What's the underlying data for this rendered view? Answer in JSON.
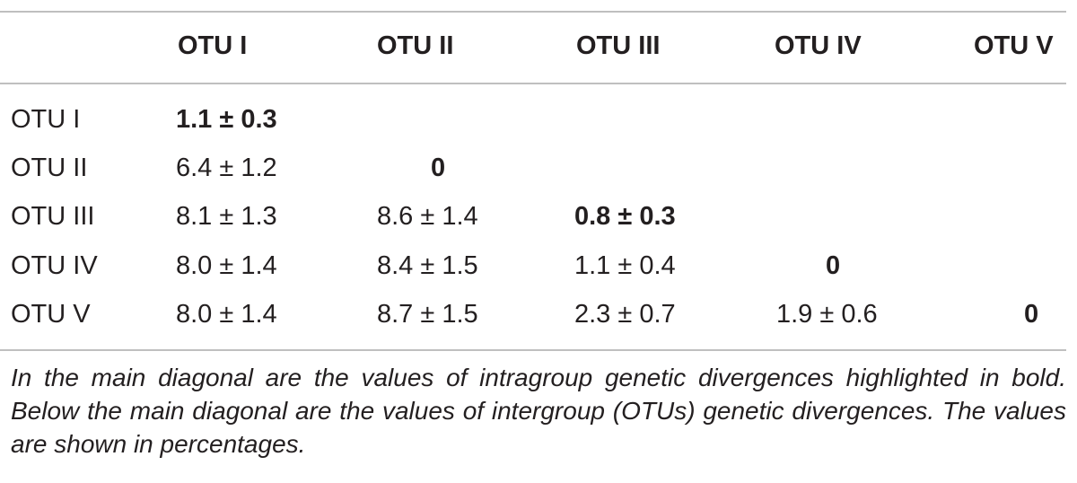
{
  "table": {
    "headers": [
      "OTU I",
      "OTU II",
      "OTU III",
      "OTU IV",
      "OTU V"
    ],
    "rows": [
      {
        "label": "OTU I",
        "cells": [
          "1.1 ± 0.3",
          "",
          "",
          "",
          ""
        ]
      },
      {
        "label": "OTU II",
        "cells": [
          "6.4 ± 1.2",
          "0",
          "",
          "",
          ""
        ]
      },
      {
        "label": "OTU III",
        "cells": [
          "8.1 ± 1.3",
          "8.6 ± 1.4",
          "0.8 ± 0.3",
          "",
          ""
        ]
      },
      {
        "label": "OTU IV",
        "cells": [
          "8.0 ± 1.4",
          "8.4 ± 1.5",
          "1.1 ± 0.4",
          "0",
          ""
        ]
      },
      {
        "label": "OTU V",
        "cells": [
          "8.0 ± 1.4",
          "8.7 ± 1.5",
          "2.3 ± 0.7",
          "1.9 ± 0.6",
          "0"
        ]
      }
    ]
  },
  "footnote": "In the main diagonal are the values of intragroup genetic divergences highlighted in bold. Below the main diagonal are the values of intergroup (OTUs) genetic divergences. The values are shown in percentages."
}
